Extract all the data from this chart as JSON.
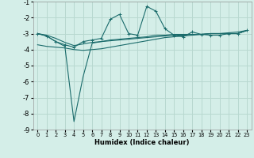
{
  "title": "",
  "xlabel": "Humidex (Indice chaleur)",
  "ylabel": "",
  "xlim": [
    -0.5,
    23.5
  ],
  "ylim": [
    -9,
    -1
  ],
  "xticks": [
    0,
    1,
    2,
    3,
    4,
    5,
    6,
    7,
    8,
    9,
    10,
    11,
    12,
    13,
    14,
    15,
    16,
    17,
    18,
    19,
    20,
    21,
    22,
    23
  ],
  "yticks": [
    -9,
    -8,
    -7,
    -6,
    -5,
    -4,
    -3,
    -2,
    -1
  ],
  "background_color": "#d4eee8",
  "grid_color": "#b8d8d0",
  "line_color": "#1a6b6b",
  "lines": [
    {
      "x": [
        0,
        1,
        2,
        3,
        4,
        5,
        6,
        7,
        8,
        9,
        10,
        11,
        12,
        13,
        14,
        15,
        16,
        17,
        18,
        19,
        20,
        21,
        22,
        23
      ],
      "y": [
        -3.0,
        -3.15,
        -3.5,
        -3.7,
        -3.85,
        -3.5,
        -3.4,
        -3.3,
        -2.1,
        -1.8,
        -3.0,
        -3.1,
        -1.3,
        -1.6,
        -2.7,
        -3.1,
        -3.2,
        -2.9,
        -3.05,
        -3.1,
        -3.1,
        -3.0,
        -3.0,
        -2.8
      ],
      "marker": "+"
    },
    {
      "x": [
        0,
        1,
        2,
        3,
        4,
        5,
        6,
        7,
        8,
        9,
        10,
        11,
        12,
        13,
        14,
        15,
        16,
        17,
        18,
        19,
        20,
        21,
        22,
        23
      ],
      "y": [
        -3.0,
        -3.15,
        -3.5,
        -3.8,
        -8.5,
        -5.7,
        -3.6,
        -3.5,
        -3.4,
        -3.35,
        -3.3,
        -3.25,
        -3.2,
        -3.1,
        -3.1,
        -3.05,
        -3.05,
        -3.05,
        -3.05,
        -3.0,
        -3.0,
        -3.0,
        -3.0,
        -2.8
      ],
      "marker": null
    },
    {
      "x": [
        0,
        1,
        2,
        3,
        4,
        5,
        6,
        7,
        8,
        9,
        10,
        11,
        12,
        13,
        14,
        15,
        16,
        17,
        18,
        19,
        20,
        21,
        22,
        23
      ],
      "y": [
        -3.0,
        -3.1,
        -3.3,
        -3.55,
        -3.75,
        -3.65,
        -3.55,
        -3.5,
        -3.45,
        -3.4,
        -3.35,
        -3.3,
        -3.25,
        -3.2,
        -3.15,
        -3.1,
        -3.1,
        -3.05,
        -3.05,
        -3.0,
        -3.0,
        -3.0,
        -3.0,
        -2.8
      ],
      "marker": null
    },
    {
      "x": [
        0,
        1,
        2,
        3,
        4,
        5,
        6,
        7,
        8,
        9,
        10,
        11,
        12,
        13,
        14,
        15,
        16,
        17,
        18,
        19,
        20,
        21,
        22,
        23
      ],
      "y": [
        -3.7,
        -3.8,
        -3.85,
        -3.9,
        -4.0,
        -4.05,
        -4.0,
        -3.95,
        -3.85,
        -3.75,
        -3.65,
        -3.55,
        -3.45,
        -3.35,
        -3.25,
        -3.2,
        -3.15,
        -3.1,
        -3.05,
        -3.0,
        -3.0,
        -2.95,
        -2.9,
        -2.8
      ],
      "marker": null
    }
  ]
}
